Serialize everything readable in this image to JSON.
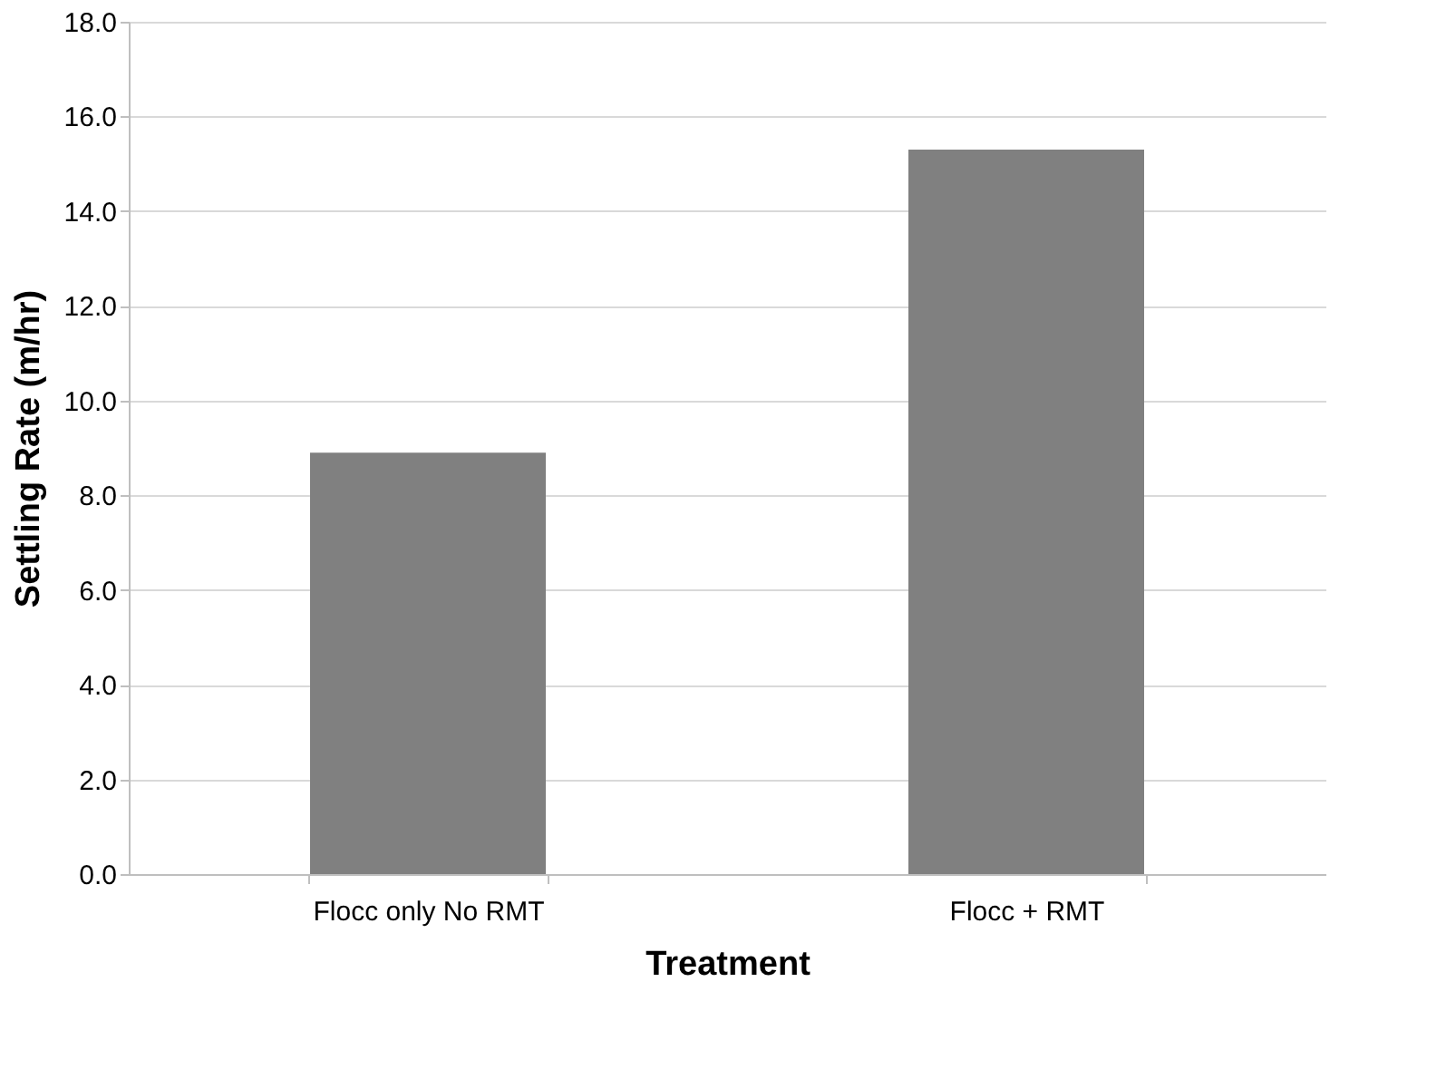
{
  "chart_data": {
    "type": "bar",
    "xlabel": "Treatment",
    "ylabel": "Settling Rate (m/hr)",
    "categories": [
      "Flocc only No RMT",
      "Flocc + RMT"
    ],
    "values": [
      8.9,
      15.3
    ],
    "color": "#808080",
    "ylim": [
      0,
      18
    ],
    "yticks": [
      {
        "value": 0,
        "label": "0.0"
      },
      {
        "value": 2,
        "label": "2.0"
      },
      {
        "value": 4,
        "label": "4.0"
      },
      {
        "value": 6,
        "label": "6.0"
      },
      {
        "value": 8,
        "label": "8.0"
      },
      {
        "value": 10,
        "label": "10.0"
      },
      {
        "value": 12,
        "label": "12.0"
      },
      {
        "value": 14,
        "label": "14.0"
      },
      {
        "value": 16,
        "label": "16.0"
      },
      {
        "value": 18,
        "label": "18.0"
      }
    ],
    "grid": "y"
  }
}
